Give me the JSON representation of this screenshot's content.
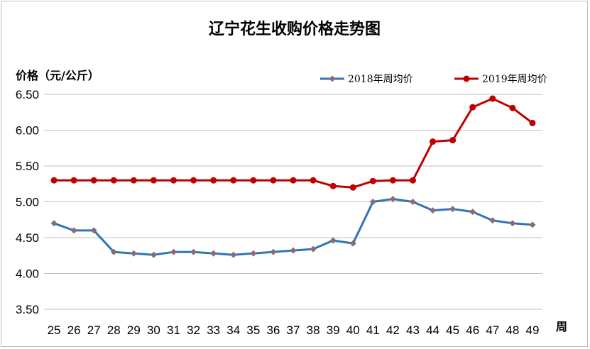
{
  "chart_data": {
    "type": "line",
    "title": "辽宁花生收购价格走势图",
    "ylabel": "价格（元/公斤）",
    "xlabel": "周",
    "ylim": [
      3.5,
      6.5
    ],
    "yticks": [
      "3.50",
      "4.00",
      "4.50",
      "5.00",
      "5.50",
      "6.00",
      "6.50"
    ],
    "categories": [
      "25",
      "26",
      "27",
      "28",
      "29",
      "30",
      "31",
      "32",
      "33",
      "34",
      "35",
      "36",
      "37",
      "38",
      "39",
      "40",
      "41",
      "42",
      "43",
      "44",
      "45",
      "46",
      "47",
      "48",
      "49"
    ],
    "grid": true,
    "legend_position": "top-right",
    "series": [
      {
        "name": "2018年周均价",
        "color": "#2e75b6",
        "marker_color": "#8b6b75",
        "marker": "diamond",
        "values": [
          4.7,
          4.6,
          4.6,
          4.3,
          4.28,
          4.26,
          4.3,
          4.3,
          4.28,
          4.26,
          4.28,
          4.3,
          4.32,
          4.34,
          4.46,
          4.42,
          5.0,
          5.04,
          5.0,
          4.88,
          4.9,
          4.86,
          4.74,
          4.7,
          4.68
        ]
      },
      {
        "name": "2019年周均价",
        "color": "#c00000",
        "marker_color": "#c00000",
        "marker": "circle",
        "values": [
          5.3,
          5.3,
          5.3,
          5.3,
          5.3,
          5.3,
          5.3,
          5.3,
          5.3,
          5.3,
          5.3,
          5.3,
          5.3,
          5.3,
          5.22,
          5.2,
          5.29,
          5.3,
          5.3,
          5.84,
          5.86,
          6.32,
          6.44,
          6.31,
          6.1
        ]
      }
    ]
  }
}
